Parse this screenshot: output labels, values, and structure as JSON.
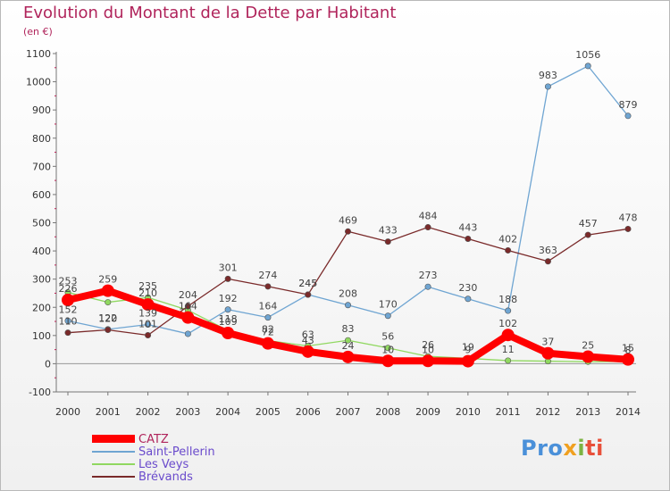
{
  "title": "Evolution du Montant de la Dette par Habitant",
  "unit": "(en €)",
  "logo": {
    "parts": [
      {
        "text": "Pro",
        "color": "#4a90d9"
      },
      {
        "text": "x",
        "color": "#f0a020"
      },
      {
        "text": "i",
        "color": "#7cb342"
      },
      {
        "text": "ti",
        "color": "#e8503a"
      }
    ]
  },
  "chart_data": {
    "type": "line",
    "title": "Evolution du Montant de la Dette par Habitant",
    "ylabel": "(en €)",
    "xlabel": "",
    "ylim": [
      -100,
      1100
    ],
    "y_ticks": [
      -100,
      0,
      100,
      200,
      300,
      400,
      500,
      600,
      700,
      800,
      900,
      1000,
      1100
    ],
    "grid": false,
    "legend_position": "bottom-left",
    "x": [
      "2000",
      "2001",
      "2002",
      "2003",
      "2004",
      "2005",
      "2006",
      "2007",
      "2008",
      "2009",
      "2010",
      "2011",
      "2012",
      "2013",
      "2014"
    ],
    "series": [
      {
        "name": "CATZ",
        "color": "#ff0000",
        "values": [
          226,
          259,
          210,
          164,
          109,
          72,
          43,
          24,
          10,
          10,
          9,
          102,
          37,
          25,
          15
        ],
        "labels": [
          "226",
          "259",
          "210",
          "164",
          "109",
          "72",
          "43",
          "24",
          "10",
          "10",
          "9",
          "102",
          "37",
          "25",
          "15"
        ]
      },
      {
        "name": "Saint-Pellerin",
        "color": "#6fa5d2",
        "values": [
          152,
          122,
          139,
          106,
          192,
          164,
          245,
          208,
          170,
          273,
          230,
          188,
          983,
          1056,
          879
        ],
        "labels": [
          "152",
          "122",
          "139",
          "",
          "192",
          "164",
          "245",
          "208",
          "170",
          "273",
          "230",
          "188",
          "983",
          "1056",
          "879"
        ]
      },
      {
        "name": "Les Veys",
        "color": "#90d860",
        "values": [
          253,
          218,
          235,
          190,
          118,
          82,
          63,
          83,
          56,
          26,
          19,
          11,
          9,
          7,
          8
        ],
        "labels": [
          "253",
          "",
          "235",
          "",
          "118",
          "82",
          "63",
          "83",
          "56",
          "26",
          "19",
          "11",
          "",
          "",
          "8"
        ]
      },
      {
        "name": "Brévands",
        "color": "#7a2a2a",
        "values": [
          110,
          120,
          101,
          204,
          301,
          274,
          245,
          469,
          433,
          484,
          443,
          402,
          363,
          457,
          478
        ],
        "labels": [
          "110",
          "120",
          "101",
          "204",
          "301",
          "274",
          "245",
          "469",
          "433",
          "484",
          "443",
          "402",
          "363",
          "457",
          "478"
        ]
      }
    ]
  }
}
